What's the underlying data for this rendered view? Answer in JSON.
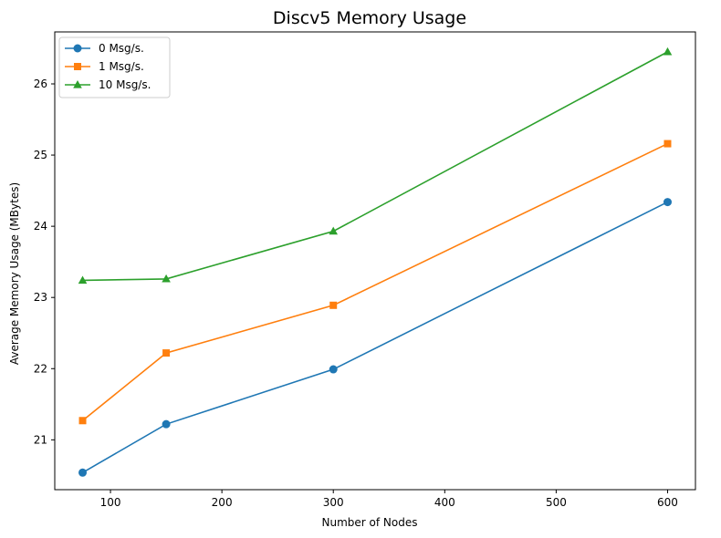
{
  "chart_data": {
    "type": "line",
    "title": "Discv5 Memory Usage",
    "xlabel": "Number of Nodes",
    "ylabel": "Average Memory Usage (MBytes)",
    "x": [
      75,
      150,
      300,
      600
    ],
    "xlim": [
      50,
      625
    ],
    "ylim": [
      20.3,
      26.73
    ],
    "xticks": [
      100,
      200,
      300,
      400,
      500,
      600
    ],
    "yticks": [
      21,
      22,
      23,
      24,
      25,
      26
    ],
    "legend_position": "top-left",
    "grid": false,
    "series": [
      {
        "name": "0 Msg/s.",
        "color": "#1f77b4",
        "marker": "circle",
        "values": [
          20.54,
          21.22,
          21.99,
          24.34
        ]
      },
      {
        "name": "1 Msg/s.",
        "color": "#ff7f0e",
        "marker": "square",
        "values": [
          21.27,
          22.22,
          22.89,
          25.16
        ]
      },
      {
        "name": "10 Msg/s.",
        "color": "#2ca02c",
        "marker": "triangle",
        "values": [
          23.24,
          23.26,
          23.93,
          26.45
        ]
      }
    ]
  }
}
